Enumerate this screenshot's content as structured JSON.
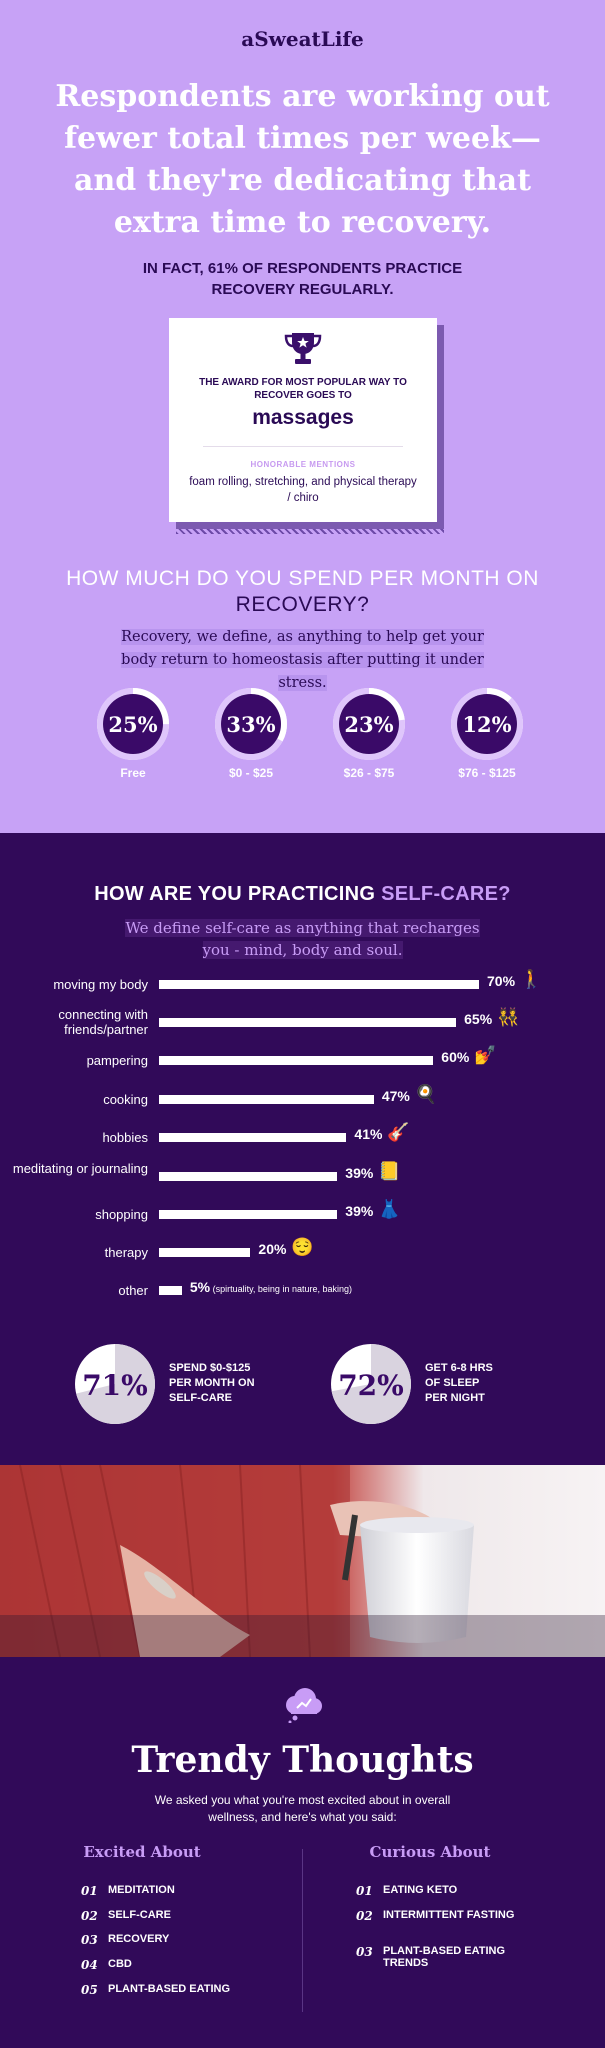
{
  "brand": "aSweatLife",
  "headline": "Respondents are working out fewer total times per week—and they're dedicating that extra time to recovery.",
  "subhead": "IN FACT, 61% OF RESPONDENTS PRACTICE RECOVERY REGULARLY.",
  "award": {
    "line1": "THE AWARD FOR MOST POPULAR WAY TO RECOVER GOES TO",
    "main": "massages",
    "hm_label": "HONORABLE MENTIONS",
    "hm_text": "foam rolling, stretching, and physical therapy / chiro"
  },
  "spend": {
    "question_part1": "HOW MUCH DO YOU SPEND PER MONTH ON ",
    "question_highlight": "RECOVERY?",
    "description": "Recovery, we define, as anything to help get your body return to homeostasis after putting it under stress.",
    "rings": [
      {
        "value": "25%",
        "label": "Free",
        "fraction": 0.25
      },
      {
        "value": "33%",
        "label": "$0 - $25",
        "fraction": 0.33
      },
      {
        "value": "23%",
        "label": "$26 - $75",
        "fraction": 0.23
      },
      {
        "value": "12%",
        "label": "$76 - $125",
        "fraction": 0.12
      }
    ]
  },
  "selfcare": {
    "question_part1": "HOW ARE YOU PRACTICING ",
    "question_highlight": "SELF-CARE?",
    "description": "We define self-care as anything that recharges you - mind, body and soul.",
    "bars": [
      {
        "label": "moving my body",
        "value": 70,
        "text": "70%",
        "emoji": "🚶",
        "note": ""
      },
      {
        "label": "connecting with friends/partner",
        "value": 65,
        "text": "65%",
        "emoji": "👯",
        "note": ""
      },
      {
        "label": "pampering",
        "value": 60,
        "text": "60%",
        "emoji": "💅",
        "note": ""
      },
      {
        "label": "cooking",
        "value": 47,
        "text": "47%",
        "emoji": "🍳",
        "note": ""
      },
      {
        "label": "hobbies",
        "value": 41,
        "text": "41%",
        "emoji": "🎸",
        "note": ""
      },
      {
        "label": "meditating or journaling",
        "value": 39,
        "text": "39%",
        "emoji": "📒",
        "note": ""
      },
      {
        "label": "shopping",
        "value": 39,
        "text": "39%",
        "emoji": "👗",
        "note": ""
      },
      {
        "label": "therapy",
        "value": 20,
        "text": "20%",
        "emoji": "😌",
        "note": ""
      },
      {
        "label": "other",
        "value": 5,
        "text": "5%",
        "emoji": "",
        "note": "(spirtuality, being in nature, baking)"
      }
    ],
    "stats": [
      {
        "value": "71%",
        "fraction": 0.71,
        "line1_a": "SPEND ",
        "line1_b": "$0-$125",
        "line2": "PER MONTH ON",
        "line3": "SELF-CARE"
      },
      {
        "value": "72%",
        "fraction": 0.72,
        "line1_a": "GET ",
        "line1_b": "6-8 HRS",
        "line2": "OF SLEEP",
        "line3": "PER NIGHT"
      }
    ]
  },
  "trendy": {
    "title": "Trendy Thoughts",
    "description": "We asked you what you're most excited about in overall wellness, and here's what you said:",
    "excited_heading": "Excited About",
    "curious_heading": "Curious About",
    "excited": [
      {
        "num": "01",
        "text": "MEDITATION"
      },
      {
        "num": "02",
        "text": "SELF-CARE"
      },
      {
        "num": "03",
        "text": "RECOVERY"
      },
      {
        "num": "04",
        "text": "CBD"
      },
      {
        "num": "05",
        "text": "PLANT-BASED EATING"
      }
    ],
    "curious": [
      {
        "num": "01",
        "text": "EATING KETO"
      },
      {
        "num": "02",
        "text": "INTERMITTENT FASTING"
      },
      {
        "num": "03",
        "text": "PLANT-BASED EATING TRENDS"
      }
    ]
  },
  "colors": {
    "lavender": "#c7a2f6",
    "deep_purple": "#310a59",
    "navy_text": "#2a0a55",
    "accent_light": "#c89cf6"
  }
}
